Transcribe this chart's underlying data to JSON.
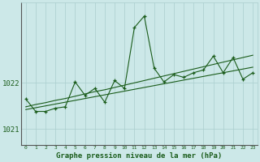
{
  "hours": [
    0,
    1,
    2,
    3,
    4,
    5,
    6,
    7,
    8,
    9,
    10,
    11,
    12,
    13,
    14,
    15,
    16,
    17,
    18,
    19,
    20,
    21,
    22,
    23
  ],
  "pressure_main": [
    1021.65,
    1021.38,
    1021.38,
    1021.45,
    1021.48,
    1022.02,
    1021.73,
    1021.88,
    1021.58,
    1022.05,
    1021.88,
    1023.2,
    1023.45,
    1022.32,
    1022.02,
    1022.18,
    1022.12,
    1022.22,
    1022.28,
    1022.58,
    1022.22,
    1022.55,
    1022.08,
    1022.22
  ],
  "trend_line1": [
    1021.42,
    1021.46,
    1021.5,
    1021.54,
    1021.58,
    1021.62,
    1021.66,
    1021.7,
    1021.74,
    1021.78,
    1021.82,
    1021.86,
    1021.9,
    1021.94,
    1021.98,
    1022.02,
    1022.06,
    1022.1,
    1022.14,
    1022.18,
    1022.22,
    1022.26,
    1022.3,
    1022.34
  ],
  "trend_line2": [
    1021.48,
    1021.53,
    1021.57,
    1021.62,
    1021.66,
    1021.71,
    1021.76,
    1021.81,
    1021.85,
    1021.9,
    1021.95,
    1022.0,
    1022.05,
    1022.1,
    1022.15,
    1022.2,
    1022.25,
    1022.3,
    1022.35,
    1022.4,
    1022.45,
    1022.5,
    1022.55,
    1022.6
  ],
  "line_color": "#1a5c1a",
  "bg_color": "#cce8e8",
  "grid_color": "#aacece",
  "text_color": "#1a5c1a",
  "ylim_min": 1020.65,
  "ylim_max": 1023.75,
  "yticks": [
    1021,
    1022
  ],
  "xlabel": "Graphe pression niveau de la mer (hPa)"
}
